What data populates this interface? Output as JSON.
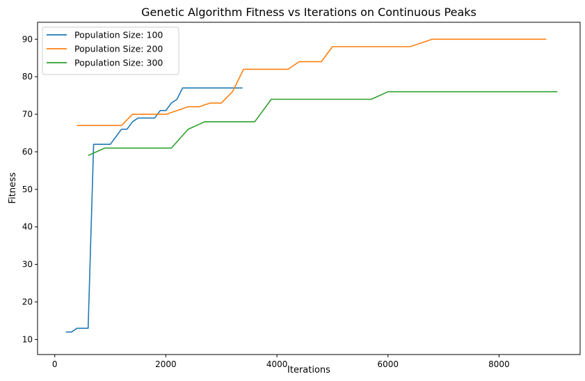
{
  "chart_data": {
    "type": "line",
    "title": "Genetic Algorithm Fitness vs Iterations on Continuous Peaks",
    "xlabel": "Iterations",
    "ylabel": "Fitness",
    "xlim": [
      -310,
      9460
    ],
    "ylim": [
      6,
      94.5
    ],
    "xticks": [
      0,
      2000,
      4000,
      6000,
      8000
    ],
    "yticks": [
      10,
      20,
      30,
      40,
      50,
      60,
      70,
      80,
      90
    ],
    "grid": false,
    "legend_position": "top-left",
    "series": [
      {
        "name": "Population Size: 100",
        "color": "#1f77b4",
        "x": [
          200,
          300,
          400,
          500,
          600,
          700,
          800,
          900,
          1000,
          1100,
          1200,
          1300,
          1400,
          1500,
          1600,
          1700,
          1800,
          1900,
          2000,
          2100,
          2200,
          2300,
          2400,
          2500,
          2600,
          2700,
          2800,
          2900,
          3000,
          3100,
          3200,
          3300,
          3380
        ],
        "values": [
          12,
          12,
          13,
          13,
          13,
          62,
          62,
          62,
          62,
          64,
          66,
          66,
          68,
          69,
          69,
          69,
          69,
          71,
          71,
          73,
          74,
          77,
          77,
          77,
          77,
          77,
          77,
          77,
          77,
          77,
          77,
          77,
          77
        ]
      },
      {
        "name": "Population Size: 200",
        "color": "#ff7f0e",
        "x": [
          400,
          800,
          1200,
          1400,
          1800,
          2000,
          2200,
          2400,
          2600,
          2800,
          3000,
          3200,
          3400,
          3800,
          4200,
          4400,
          4600,
          4800,
          5000,
          5400,
          5800,
          6400,
          6800,
          7200,
          7600,
          8000,
          8400,
          8850
        ],
        "values": [
          67,
          67,
          67,
          70,
          70,
          70,
          71,
          72,
          72,
          73,
          73,
          76,
          82,
          82,
          82,
          84,
          84,
          84,
          88,
          88,
          88,
          88,
          90,
          90,
          90,
          90,
          90,
          90
        ]
      },
      {
        "name": "Population Size: 300",
        "color": "#2ca02c",
        "x": [
          600,
          900,
          1200,
          1500,
          1800,
          2100,
          2400,
          2700,
          3000,
          3300,
          3600,
          3900,
          4200,
          4500,
          4800,
          5100,
          5400,
          5700,
          6000,
          6300,
          6600,
          6900,
          7200,
          7500,
          7800,
          8100,
          8400,
          8700,
          9050
        ],
        "values": [
          59,
          61,
          61,
          61,
          61,
          61,
          66,
          68,
          68,
          68,
          68,
          74,
          74,
          74,
          74,
          74,
          74,
          74,
          76,
          76,
          76,
          76,
          76,
          76,
          76,
          76,
          76,
          76,
          76
        ]
      }
    ]
  }
}
